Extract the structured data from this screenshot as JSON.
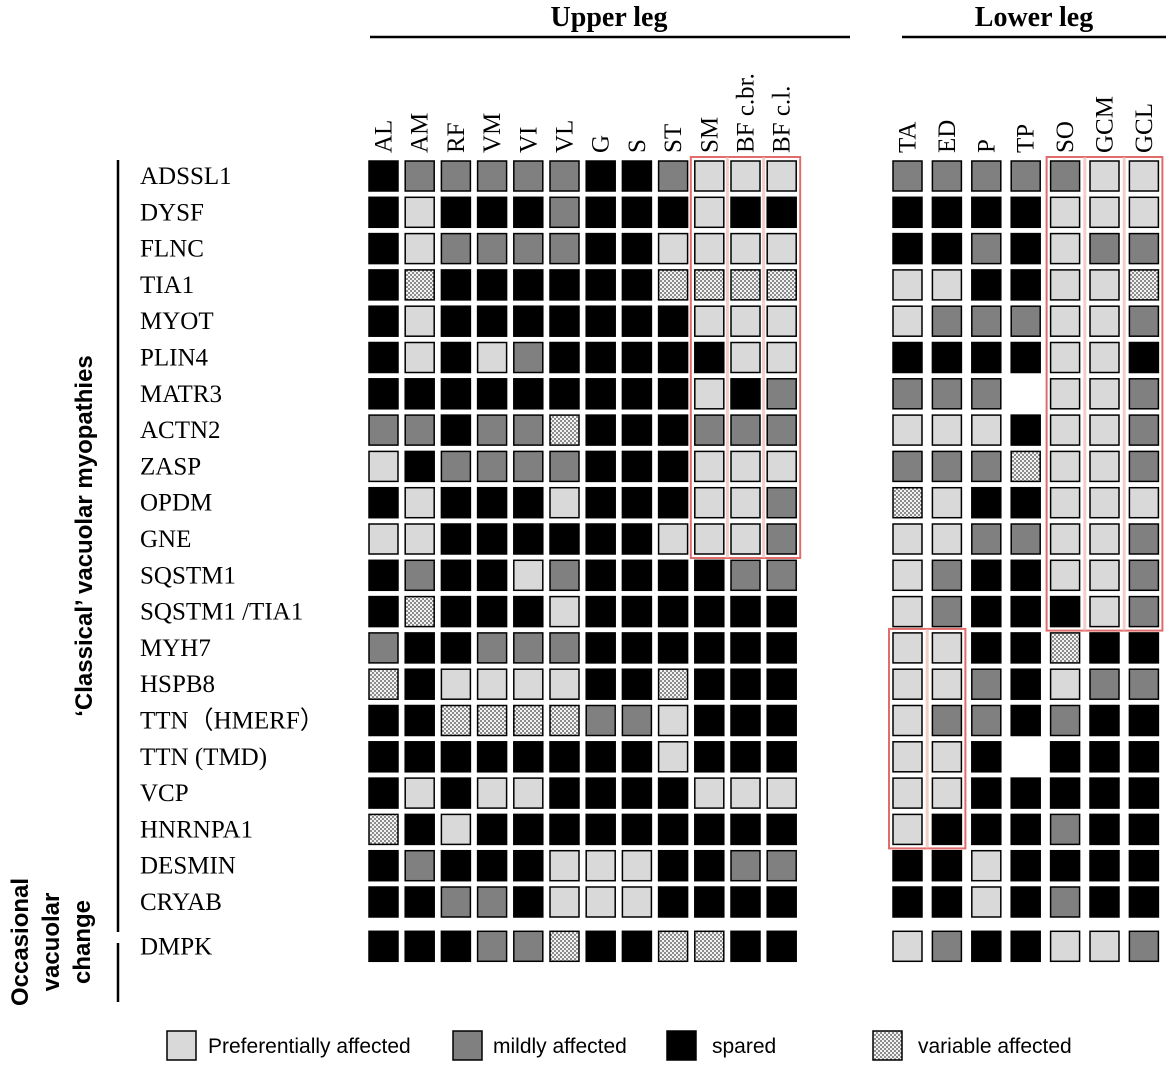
{
  "chart_data": {
    "type": "heatmap",
    "title": "",
    "regions": [
      {
        "key": "upper",
        "label": "Upper leg",
        "muscles": [
          "AL",
          "AM",
          "RF",
          "VM",
          "VI",
          "VL",
          "G",
          "S",
          "ST",
          "SM",
          "BF c.br.",
          "BF c.l."
        ]
      },
      {
        "key": "lower",
        "label": "Lower leg",
        "muscles": [
          "TA",
          "ED",
          "P",
          "TP",
          "SO",
          "GCM",
          "GCL"
        ]
      }
    ],
    "groups": [
      {
        "label": "‘Classical’ vacuolar myopathies",
        "from": "ADSSL1",
        "to": "HNRNPA1"
      },
      {
        "label_lines": [
          "Occasional",
          "vacuolar",
          "change"
        ],
        "from": "DESMIN",
        "to": "DMPK"
      }
    ],
    "legend": [
      {
        "code": "L",
        "label": "Preferentially affected",
        "color": "#d9d9d9"
      },
      {
        "code": "M",
        "label": "mildly affected",
        "color": "#808080"
      },
      {
        "code": "B",
        "label": "spared",
        "color": "#000000"
      },
      {
        "code": "V",
        "label": "variable affected",
        "color": "#e8e8e8"
      }
    ],
    "cell_codes": {
      "L": "preferentially affected",
      "M": "mildly affected",
      "B": "spared",
      "V": "variable affected",
      "-": "no data"
    },
    "rows": [
      {
        "gene": "ADSSL1",
        "upper": [
          "B",
          "M",
          "M",
          "M",
          "M",
          "M",
          "B",
          "B",
          "M",
          "L",
          "L",
          "L"
        ],
        "lower": [
          "M",
          "M",
          "M",
          "M",
          "M",
          "L",
          "L"
        ]
      },
      {
        "gene": "DYSF",
        "upper": [
          "B",
          "L",
          "B",
          "B",
          "B",
          "M",
          "B",
          "B",
          "B",
          "L",
          "B",
          "B"
        ],
        "lower": [
          "B",
          "B",
          "B",
          "B",
          "L",
          "L",
          "L"
        ]
      },
      {
        "gene": "FLNC",
        "upper": [
          "B",
          "L",
          "M",
          "M",
          "M",
          "M",
          "B",
          "B",
          "L",
          "L",
          "L",
          "L"
        ],
        "lower": [
          "B",
          "B",
          "M",
          "B",
          "L",
          "M",
          "M"
        ]
      },
      {
        "gene": "TIA1",
        "upper": [
          "B",
          "V",
          "B",
          "B",
          "B",
          "B",
          "B",
          "B",
          "V",
          "V",
          "V",
          "V"
        ],
        "lower": [
          "L",
          "L",
          "B",
          "B",
          "L",
          "L",
          "V"
        ]
      },
      {
        "gene": "MYOT",
        "upper": [
          "B",
          "L",
          "B",
          "B",
          "B",
          "B",
          "B",
          "B",
          "B",
          "L",
          "L",
          "L"
        ],
        "lower": [
          "L",
          "M",
          "M",
          "M",
          "L",
          "L",
          "M"
        ]
      },
      {
        "gene": "PLIN4",
        "upper": [
          "B",
          "L",
          "B",
          "L",
          "M",
          "B",
          "B",
          "B",
          "B",
          "B",
          "L",
          "L"
        ],
        "lower": [
          "B",
          "B",
          "B",
          "B",
          "L",
          "L",
          "B"
        ]
      },
      {
        "gene": "MATR3",
        "upper": [
          "B",
          "B",
          "B",
          "B",
          "B",
          "B",
          "B",
          "B",
          "B",
          "L",
          "B",
          "M"
        ],
        "lower": [
          "M",
          "M",
          "M",
          "-",
          "L",
          "L",
          "M"
        ]
      },
      {
        "gene": "ACTN2",
        "upper": [
          "M",
          "M",
          "B",
          "M",
          "M",
          "V",
          "B",
          "B",
          "B",
          "M",
          "M",
          "M"
        ],
        "lower": [
          "L",
          "L",
          "L",
          "B",
          "L",
          "L",
          "M"
        ]
      },
      {
        "gene": "ZASP",
        "upper": [
          "L",
          "B",
          "M",
          "M",
          "M",
          "M",
          "B",
          "B",
          "B",
          "L",
          "L",
          "L"
        ],
        "lower": [
          "M",
          "M",
          "M",
          "V",
          "L",
          "L",
          "M"
        ]
      },
      {
        "gene": "OPDM",
        "upper": [
          "B",
          "L",
          "B",
          "B",
          "B",
          "L",
          "B",
          "B",
          "B",
          "L",
          "L",
          "M"
        ],
        "lower": [
          "V",
          "L",
          "B",
          "B",
          "L",
          "L",
          "L"
        ]
      },
      {
        "gene": "GNE",
        "upper": [
          "L",
          "L",
          "B",
          "B",
          "B",
          "B",
          "B",
          "B",
          "L",
          "L",
          "L",
          "M"
        ],
        "lower": [
          "L",
          "L",
          "M",
          "M",
          "L",
          "L",
          "M"
        ]
      },
      {
        "gene": "SQSTM1",
        "upper": [
          "B",
          "M",
          "B",
          "B",
          "L",
          "M",
          "B",
          "B",
          "B",
          "B",
          "M",
          "M"
        ],
        "lower": [
          "L",
          "M",
          "B",
          "B",
          "L",
          "L",
          "M"
        ]
      },
      {
        "gene": "SQSTM1 /TIA1",
        "upper": [
          "B",
          "V",
          "B",
          "B",
          "B",
          "L",
          "B",
          "B",
          "B",
          "B",
          "B",
          "B"
        ],
        "lower": [
          "L",
          "M",
          "B",
          "B",
          "B",
          "L",
          "M"
        ]
      },
      {
        "gene": "MYH7",
        "upper": [
          "M",
          "B",
          "B",
          "M",
          "M",
          "M",
          "B",
          "B",
          "B",
          "B",
          "B",
          "B"
        ],
        "lower": [
          "L",
          "L",
          "B",
          "B",
          "V",
          "B",
          "B"
        ]
      },
      {
        "gene": "HSPB8",
        "upper": [
          "V",
          "B",
          "L",
          "L",
          "L",
          "L",
          "B",
          "B",
          "V",
          "B",
          "B",
          "B"
        ],
        "lower": [
          "L",
          "L",
          "M",
          "B",
          "L",
          "M",
          "M"
        ]
      },
      {
        "gene": "TTN（HMERF）",
        "upper": [
          "B",
          "B",
          "V",
          "V",
          "V",
          "V",
          "M",
          "M",
          "L",
          "B",
          "B",
          "B"
        ],
        "lower": [
          "L",
          "M",
          "M",
          "B",
          "M",
          "B",
          "B"
        ]
      },
      {
        "gene": "TTN (TMD)",
        "upper": [
          "B",
          "B",
          "B",
          "B",
          "B",
          "B",
          "B",
          "B",
          "L",
          "B",
          "B",
          "B"
        ],
        "lower": [
          "L",
          "L",
          "B",
          "-",
          "B",
          "B",
          "B"
        ]
      },
      {
        "gene": "VCP",
        "upper": [
          "B",
          "L",
          "B",
          "L",
          "L",
          "B",
          "B",
          "B",
          "B",
          "L",
          "L",
          "L"
        ],
        "lower": [
          "L",
          "L",
          "B",
          "B",
          "B",
          "B",
          "B"
        ]
      },
      {
        "gene": "HNRNPA1",
        "upper": [
          "V",
          "B",
          "L",
          "B",
          "B",
          "B",
          "B",
          "B",
          "B",
          "B",
          "B",
          "B"
        ],
        "lower": [
          "L",
          "B",
          "B",
          "B",
          "M",
          "B",
          "B"
        ]
      },
      {
        "gene": "DESMIN",
        "upper": [
          "B",
          "M",
          "B",
          "B",
          "B",
          "L",
          "L",
          "L",
          "B",
          "B",
          "M",
          "M"
        ],
        "lower": [
          "B",
          "B",
          "L",
          "B",
          "B",
          "B",
          "B"
        ]
      },
      {
        "gene": "CRYAB",
        "upper": [
          "B",
          "B",
          "M",
          "M",
          "B",
          "L",
          "L",
          "L",
          "B",
          "B",
          "B",
          "B"
        ],
        "lower": [
          "B",
          "B",
          "L",
          "B",
          "M",
          "B",
          "B"
        ]
      },
      {
        "gene": "DMPK",
        "upper": [
          "B",
          "B",
          "B",
          "M",
          "M",
          "V",
          "B",
          "B",
          "V",
          "V",
          "B",
          "B"
        ],
        "lower": [
          "L",
          "M",
          "B",
          "B",
          "L",
          "L",
          "M"
        ]
      }
    ],
    "highlight_boxes": [
      {
        "region": "upper",
        "columns": [
          "SM",
          "BF c.l."
        ],
        "rows": [
          "ADSSL1",
          "GNE"
        ]
      },
      {
        "region": "lower",
        "columns": [
          "SO",
          "GCL"
        ],
        "rows": [
          "ADSSL1",
          "SQSTM1 /TIA1"
        ]
      },
      {
        "region": "lower",
        "columns": [
          "TA",
          "ED"
        ],
        "rows": [
          "MYH7",
          "HNRNPA1"
        ]
      }
    ]
  }
}
